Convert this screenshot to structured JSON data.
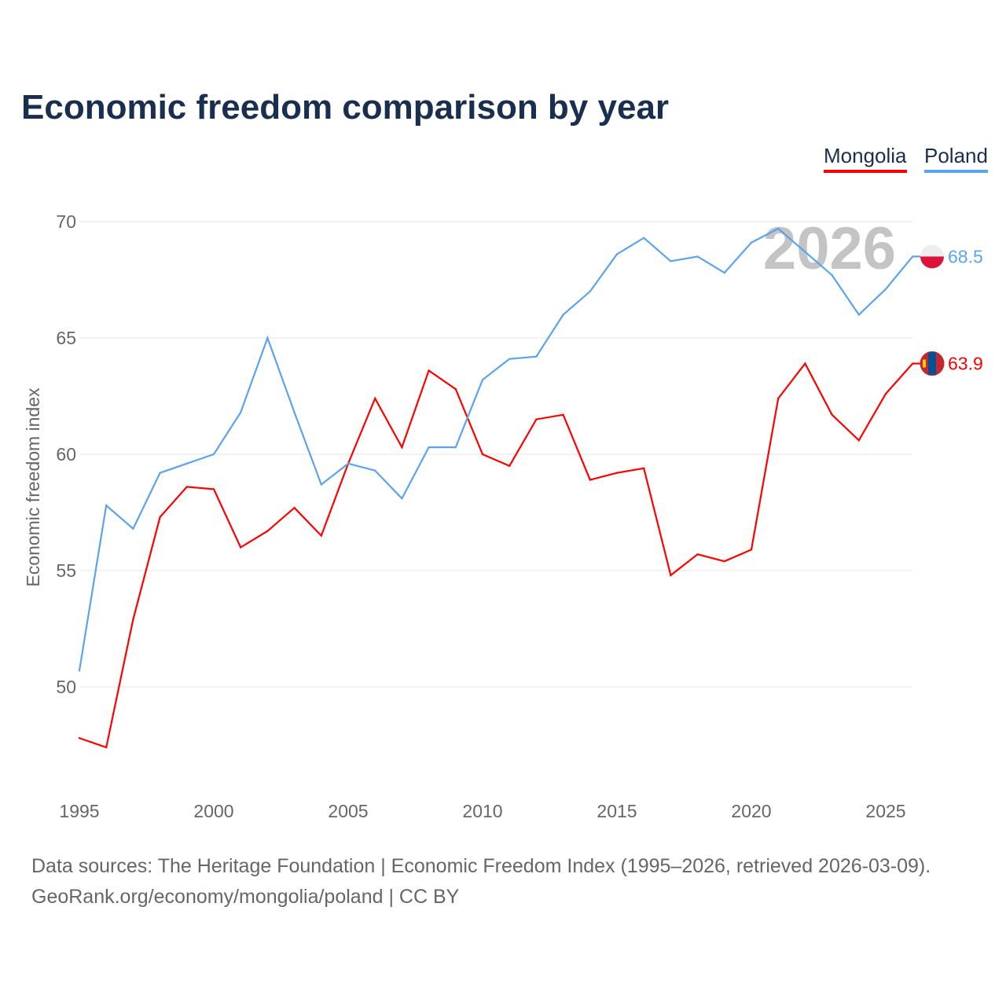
{
  "title": "Economic freedom comparison by year",
  "year_watermark": "2026",
  "footer": {
    "line1": "Data sources: The Heritage Foundation | Economic Freedom Index (1995–2026, retrieved 2026-03-09).",
    "line2": "GeoRank.org/economy/mongolia/poland | CC BY"
  },
  "chart_data": {
    "type": "line",
    "title": "Economic freedom comparison by year",
    "xlabel": "",
    "ylabel": "Economic freedom index",
    "xlim": [
      1995,
      2026
    ],
    "ylim": [
      45,
      72
    ],
    "x_ticks": [
      "1995",
      "2000",
      "2005",
      "2010",
      "2015",
      "2020",
      "2025"
    ],
    "y_ticks": [
      "50",
      "55",
      "60",
      "65",
      "70"
    ],
    "grid": true,
    "legend_position": "top-right",
    "x": [
      1995,
      1996,
      1997,
      1998,
      1999,
      2000,
      2001,
      2002,
      2003,
      2004,
      2005,
      2006,
      2007,
      2008,
      2009,
      2010,
      2011,
      2012,
      2013,
      2014,
      2015,
      2016,
      2017,
      2018,
      2019,
      2020,
      2021,
      2022,
      2023,
      2024,
      2025,
      2026
    ],
    "series": [
      {
        "name": "Mongolia",
        "color": "#ff0000",
        "end_label": "63.9",
        "values": [
          47.8,
          47.4,
          52.9,
          57.3,
          58.6,
          58.5,
          56.0,
          56.7,
          57.7,
          56.5,
          59.6,
          62.4,
          60.3,
          63.6,
          62.8,
          60.0,
          59.5,
          61.5,
          61.7,
          58.9,
          59.2,
          59.4,
          54.8,
          55.7,
          55.4,
          55.9,
          62.4,
          63.9,
          61.7,
          60.6,
          62.6,
          63.9
        ]
      },
      {
        "name": "Poland",
        "color": "#5ba4ec",
        "end_label": "68.5",
        "values": [
          50.7,
          57.8,
          56.8,
          59.2,
          59.6,
          60.0,
          61.8,
          65.0,
          61.8,
          58.7,
          59.6,
          59.3,
          58.1,
          60.3,
          60.3,
          63.2,
          64.1,
          64.2,
          66.0,
          67.0,
          68.6,
          69.3,
          68.3,
          68.5,
          67.8,
          69.1,
          69.7,
          68.7,
          67.7,
          66.0,
          67.1,
          68.5
        ]
      }
    ]
  }
}
